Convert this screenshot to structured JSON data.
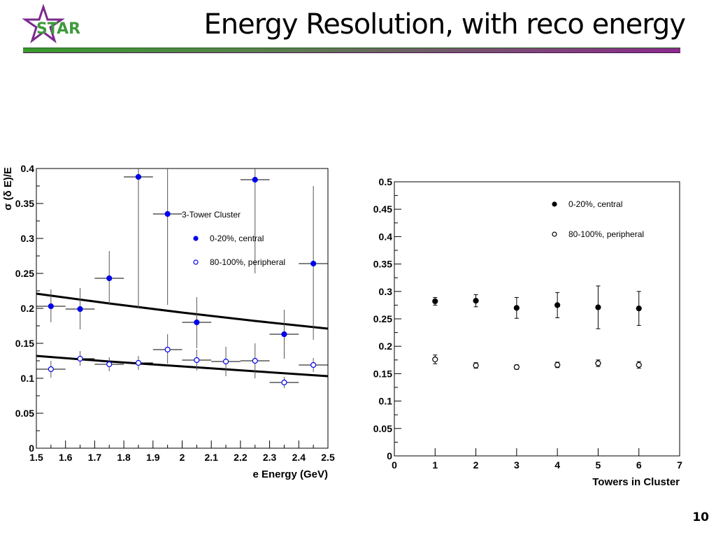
{
  "slide": {
    "title": "Energy Resolution, with reco energy",
    "logo_text": "STAR",
    "page_number": "10"
  },
  "chart_data": [
    {
      "type": "scatter",
      "xlabel": "e Energy (GeV)",
      "ylabel": "σ (δ E)/E",
      "xlim": [
        1.5,
        2.5
      ],
      "ylim": [
        0,
        0.4
      ],
      "x_ticks": [
        "1.5",
        "1.6",
        "1.7",
        "1.8",
        "1.9",
        "2",
        "2.1",
        "2.2",
        "2.3",
        "2.4",
        "2.5"
      ],
      "y_ticks": [
        "0",
        "0.05",
        "0.1",
        "0.15",
        "0.2",
        "0.25",
        "0.3",
        "0.35",
        "0.4"
      ],
      "grid": false,
      "legend_title": "3-Tower Cluster",
      "legend_position": "top-right",
      "series": [
        {
          "name": "0-20%, central",
          "marker": "filled-circle",
          "color": "#0000ee",
          "points": [
            {
              "x": 1.55,
              "y": 0.203,
              "yerr_lo": 0.023,
              "yerr_hi": 0.024,
              "xerr": 0.05
            },
            {
              "x": 1.65,
              "y": 0.199,
              "yerr_lo": 0.029,
              "yerr_hi": 0.03,
              "xerr": 0.05
            },
            {
              "x": 1.75,
              "y": 0.243,
              "yerr_lo": 0.038,
              "yerr_hi": 0.039,
              "xerr": 0.05
            },
            {
              "x": 1.85,
              "y": 0.388,
              "yerr_lo": 0.188,
              "yerr_hi": 0.012,
              "xerr": 0.05
            },
            {
              "x": 1.95,
              "y": 0.335,
              "yerr_lo": 0.13,
              "yerr_hi": 0.065,
              "xerr": 0.05
            },
            {
              "x": 2.05,
              "y": 0.18,
              "yerr_lo": 0.037,
              "yerr_hi": 0.036,
              "xerr": 0.05
            },
            {
              "x": 2.25,
              "y": 0.384,
              "yerr_lo": 0.134,
              "yerr_hi": 0.016,
              "xerr": 0.05
            },
            {
              "x": 2.35,
              "y": 0.163,
              "yerr_lo": 0.035,
              "yerr_hi": 0.035,
              "xerr": 0.05
            },
            {
              "x": 2.45,
              "y": 0.264,
              "yerr_lo": 0.109,
              "yerr_hi": 0.111,
              "xerr": 0.05
            }
          ],
          "fit": {
            "x": [
              1.5,
              1.75,
              2.0,
              2.25,
              2.5
            ],
            "y": [
              0.221,
              0.207,
              0.194,
              0.182,
              0.171
            ]
          }
        },
        {
          "name": "80-100%, peripheral",
          "marker": "open-circle",
          "color": "#0000ee",
          "points": [
            {
              "x": 1.55,
              "y": 0.113,
              "yerr_lo": 0.012,
              "yerr_hi": 0.012,
              "xerr": 0.05
            },
            {
              "x": 1.65,
              "y": 0.128,
              "yerr_lo": 0.01,
              "yerr_hi": 0.011,
              "xerr": 0.05
            },
            {
              "x": 1.75,
              "y": 0.12,
              "yerr_lo": 0.01,
              "yerr_hi": 0.01,
              "xerr": 0.05
            },
            {
              "x": 1.85,
              "y": 0.122,
              "yerr_lo": 0.01,
              "yerr_hi": 0.01,
              "xerr": 0.05
            },
            {
              "x": 1.95,
              "y": 0.141,
              "yerr_lo": 0.02,
              "yerr_hi": 0.022,
              "xerr": 0.05
            },
            {
              "x": 2.05,
              "y": 0.126,
              "yerr_lo": 0.015,
              "yerr_hi": 0.015,
              "xerr": 0.05
            },
            {
              "x": 2.15,
              "y": 0.124,
              "yerr_lo": 0.021,
              "yerr_hi": 0.021,
              "xerr": 0.05
            },
            {
              "x": 2.25,
              "y": 0.125,
              "yerr_lo": 0.025,
              "yerr_hi": 0.025,
              "xerr": 0.05
            },
            {
              "x": 2.35,
              "y": 0.094,
              "yerr_lo": 0.008,
              "yerr_hi": 0.008,
              "xerr": 0.05
            },
            {
              "x": 2.45,
              "y": 0.119,
              "yerr_lo": 0.01,
              "yerr_hi": 0.01,
              "xerr": 0.05
            }
          ],
          "fit": {
            "x": [
              1.5,
              1.75,
              2.0,
              2.25,
              2.5
            ],
            "y": [
              0.132,
              0.124,
              0.117,
              0.11,
              0.103
            ]
          }
        }
      ]
    },
    {
      "type": "scatter",
      "xlabel": "Towers in Cluster",
      "ylabel": "",
      "xlim": [
        0,
        7
      ],
      "ylim": [
        0,
        0.5
      ],
      "x_ticks": [
        "0",
        "1",
        "2",
        "3",
        "4",
        "5",
        "6",
        "7"
      ],
      "y_ticks": [
        "0",
        "0.05",
        "0.1",
        "0.15",
        "0.2",
        "0.25",
        "0.3",
        "0.35",
        "0.4",
        "0.45",
        "0.5"
      ],
      "grid": false,
      "legend_position": "top-right",
      "series": [
        {
          "name": "0-20%,   central",
          "marker": "filled-circle",
          "color": "#000000",
          "points": [
            {
              "x": 1,
              "y": 0.282,
              "err": 0.007
            },
            {
              "x": 2,
              "y": 0.283,
              "err": 0.011
            },
            {
              "x": 3,
              "y": 0.27,
              "err": 0.019
            },
            {
              "x": 4,
              "y": 0.275,
              "err": 0.023
            },
            {
              "x": 5,
              "y": 0.271,
              "err": 0.039
            },
            {
              "x": 6,
              "y": 0.269,
              "err": 0.031
            }
          ]
        },
        {
          "name": "80-100%, peripheral",
          "marker": "open-circle",
          "color": "#000000",
          "points": [
            {
              "x": 1,
              "y": 0.176,
              "err": 0.008
            },
            {
              "x": 2,
              "y": 0.165,
              "err": 0.005
            },
            {
              "x": 3,
              "y": 0.162,
              "err": 0.004
            },
            {
              "x": 4,
              "y": 0.166,
              "err": 0.005
            },
            {
              "x": 5,
              "y": 0.169,
              "err": 0.006
            },
            {
              "x": 6,
              "y": 0.166,
              "err": 0.006
            }
          ]
        }
      ]
    }
  ],
  "colors": {
    "accent_green": "#3f9a3c",
    "accent_purple": "#7b2a8c"
  }
}
